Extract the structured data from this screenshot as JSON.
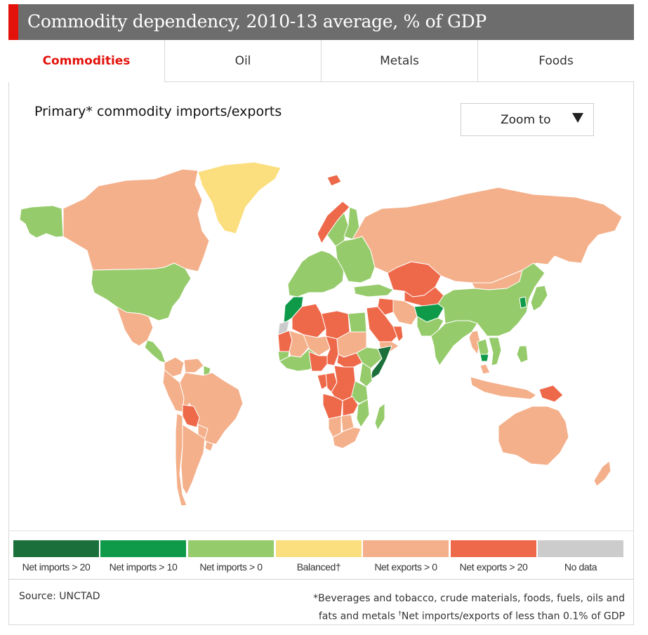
{
  "header": {
    "title": "Commodity dependency, 2010-13 average, % of GDP"
  },
  "tabs": [
    {
      "label": "Commodities",
      "active": true
    },
    {
      "label": "Oil",
      "active": false
    },
    {
      "label": "Metals",
      "active": false
    },
    {
      "label": "Foods",
      "active": false
    }
  ],
  "map": {
    "subtitle": "Primary* commodity imports/exports",
    "zoom_label": "Zoom to",
    "regions": [
      {
        "name": "Alaska",
        "category": "Net imports > 0"
      },
      {
        "name": "Canada",
        "category": "Net exports > 0"
      },
      {
        "name": "Greenland",
        "category": "Balanced"
      },
      {
        "name": "United States",
        "category": "Net imports > 0"
      },
      {
        "name": "Mexico",
        "category": "Net exports > 0"
      },
      {
        "name": "Central America",
        "category": "Net imports > 0"
      },
      {
        "name": "Colombia",
        "category": "Net exports > 0"
      },
      {
        "name": "Venezuela",
        "category": "Net exports > 0"
      },
      {
        "name": "Guyana",
        "category": "Net imports > 0"
      },
      {
        "name": "Peru",
        "category": "Net exports > 0"
      },
      {
        "name": "Brazil",
        "category": "Net exports > 0"
      },
      {
        "name": "Bolivia",
        "category": "Net exports > 20"
      },
      {
        "name": "Paraguay",
        "category": "Net exports > 0"
      },
      {
        "name": "Chile",
        "category": "Net exports > 0"
      },
      {
        "name": "Argentina",
        "category": "Net exports > 0"
      },
      {
        "name": "Uruguay",
        "category": "Net exports > 0"
      },
      {
        "name": "Iceland",
        "category": "Net exports > 20"
      },
      {
        "name": "Norway",
        "category": "Net exports > 20"
      },
      {
        "name": "Sweden",
        "category": "Net imports > 0"
      },
      {
        "name": "Finland",
        "category": "Net imports > 0"
      },
      {
        "name": "Western Europe",
        "category": "Net imports > 0"
      },
      {
        "name": "Eastern Europe",
        "category": "Net imports > 0"
      },
      {
        "name": "Turkey",
        "category": "Net imports > 0"
      },
      {
        "name": "Russia",
        "category": "Net exports > 0"
      },
      {
        "name": "Kazakhstan",
        "category": "Net exports > 20"
      },
      {
        "name": "Mongolia",
        "category": "Net exports > 0"
      },
      {
        "name": "Central Asia",
        "category": "Net exports > 20"
      },
      {
        "name": "Afghanistan",
        "category": "Net imports > 10"
      },
      {
        "name": "Iran",
        "category": "Net exports > 0"
      },
      {
        "name": "Iraq",
        "category": "Net exports > 20"
      },
      {
        "name": "Saudi Arabia",
        "category": "Net exports > 20"
      },
      {
        "name": "Yemen",
        "category": "Net exports > 0"
      },
      {
        "name": "Oman",
        "category": "Net exports > 20"
      },
      {
        "name": "Pakistan",
        "category": "Net imports > 0"
      },
      {
        "name": "India",
        "category": "Net imports > 0"
      },
      {
        "name": "China",
        "category": "Net imports > 0"
      },
      {
        "name": "Korea",
        "category": "Net imports > 10"
      },
      {
        "name": "Japan",
        "category": "Net imports > 0"
      },
      {
        "name": "Myanmar",
        "category": "Net exports > 0"
      },
      {
        "name": "Thailand",
        "category": "Net imports > 0"
      },
      {
        "name": "Vietnam",
        "category": "Net imports > 0"
      },
      {
        "name": "Cambodia",
        "category": "Net imports > 10"
      },
      {
        "name": "Malaysia",
        "category": "Net exports > 0"
      },
      {
        "name": "Indonesia",
        "category": "Net exports > 0"
      },
      {
        "name": "Philippines",
        "category": "Net imports > 0"
      },
      {
        "name": "Papua New Guinea",
        "category": "Net exports > 20"
      },
      {
        "name": "Australia",
        "category": "Net exports > 0"
      },
      {
        "name": "New Zealand",
        "category": "Net exports > 0"
      },
      {
        "name": "Morocco",
        "category": "Net imports > 10"
      },
      {
        "name": "Western Sahara",
        "category": "No data"
      },
      {
        "name": "Algeria",
        "category": "Net exports > 20"
      },
      {
        "name": "Libya",
        "category": "Net exports > 20"
      },
      {
        "name": "Egypt",
        "category": "Net imports > 0"
      },
      {
        "name": "Mauritania",
        "category": "Net exports > 20"
      },
      {
        "name": "Mali",
        "category": "Net exports > 0"
      },
      {
        "name": "Niger",
        "category": "Net exports > 0"
      },
      {
        "name": "Chad",
        "category": "Net exports > 20"
      },
      {
        "name": "Sudan",
        "category": "Net exports > 0"
      },
      {
        "name": "South Sudan",
        "category": "Net exports > 20"
      },
      {
        "name": "Ethiopia",
        "category": "Net imports > 0"
      },
      {
        "name": "Somalia",
        "category": "Net imports > 20"
      },
      {
        "name": "Senegal",
        "category": "Net imports > 0"
      },
      {
        "name": "West Africa coast",
        "category": "Net imports > 0"
      },
      {
        "name": "Nigeria",
        "category": "Net exports > 20"
      },
      {
        "name": "Gabon",
        "category": "Net exports > 20"
      },
      {
        "name": "Congo",
        "category": "Net exports > 20"
      },
      {
        "name": "DR Congo",
        "category": "Net exports > 20"
      },
      {
        "name": "Kenya",
        "category": "Net imports > 0"
      },
      {
        "name": "Tanzania",
        "category": "Net imports > 0"
      },
      {
        "name": "Angola",
        "category": "Net exports > 20"
      },
      {
        "name": "Zambia",
        "category": "Net exports > 20"
      },
      {
        "name": "Mozambique",
        "category": "Net imports > 0"
      },
      {
        "name": "Namibia",
        "category": "Net exports > 0"
      },
      {
        "name": "Botswana",
        "category": "Net exports > 0"
      },
      {
        "name": "South Africa",
        "category": "Net exports > 0"
      },
      {
        "name": "Madagascar",
        "category": "Net imports > 0"
      }
    ]
  },
  "legend": [
    {
      "label": "Net imports > 20",
      "color": "#1b6f3a"
    },
    {
      "label": "Net imports > 10",
      "color": "#0e9a49"
    },
    {
      "label": "Net imports > 0",
      "color": "#96cb6b"
    },
    {
      "label": "Balanced†",
      "color": "#fbde7d"
    },
    {
      "label": "Net exports > 0",
      "color": "#f4b08b"
    },
    {
      "label": "Net exports > 20",
      "color": "#ee694a"
    },
    {
      "label": "No data",
      "color": "#cccccc"
    }
  ],
  "footer": {
    "source": "Source: UNCTAD",
    "note_line1": "*Beverages and tobacco, crude materials, foods, fuels, oils and",
    "note_line2_a": "fats and metals ",
    "note_dagger": "†",
    "note_line2_b": "Net imports/exports of less than 0.1% of GDP"
  }
}
